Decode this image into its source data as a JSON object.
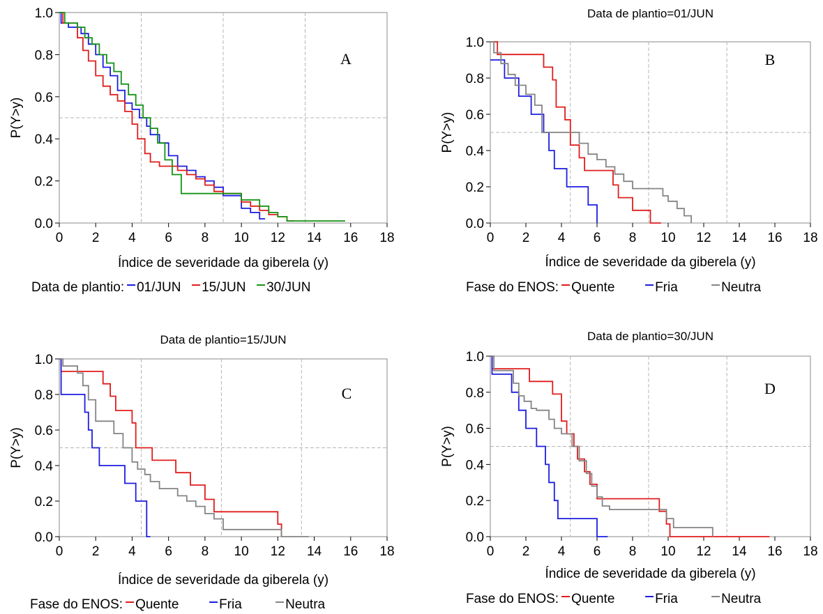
{
  "colors": {
    "blue": "#1c1ce0",
    "red": "#e01c1c",
    "green": "#139313",
    "gray": "#848484",
    "reference": "#b5b5b5"
  },
  "chart_data": [
    {
      "type": "line",
      "step": true,
      "panel_label": "A",
      "title": "",
      "xlabel": "Índice de severidade da giberela (y)",
      "ylabel": "P(Y>y)",
      "xlim": [
        0,
        18
      ],
      "ylim": [
        0,
        1
      ],
      "xticks": [
        0,
        2,
        4,
        6,
        8,
        10,
        12,
        14,
        16,
        18
      ],
      "yticks": [
        0.0,
        0.2,
        0.4,
        0.6,
        0.8,
        1.0
      ],
      "tick_labels_x": [
        "0",
        "2",
        "4",
        "6",
        "8",
        "10",
        "12",
        "14",
        "16",
        "18"
      ],
      "tick_labels_y": [
        "0.0",
        "0.2",
        "0.4",
        "0.6",
        "0.8",
        "1.0"
      ],
      "reference_lines": {
        "x": [
          4.5,
          9.0,
          13.5
        ],
        "y": [
          0.5
        ]
      },
      "legend": {
        "title": "Data de plantio:",
        "position": "bottom"
      },
      "series": [
        {
          "name": "01/JUN",
          "color": "blue",
          "x": [
            0,
            0.1,
            0.5,
            1.2,
            1.6,
            2.0,
            2.4,
            2.8,
            3.2,
            3.6,
            4.0,
            4.4,
            4.8,
            5.0,
            5.5,
            6.0,
            6.5,
            7.0,
            7.5,
            8.0,
            8.5,
            9.0,
            10.0,
            10.5,
            11.0,
            11.3
          ],
          "y": [
            1.0,
            0.95,
            0.93,
            0.9,
            0.85,
            0.8,
            0.74,
            0.7,
            0.63,
            0.57,
            0.54,
            0.5,
            0.46,
            0.42,
            0.38,
            0.32,
            0.27,
            0.25,
            0.22,
            0.2,
            0.17,
            0.13,
            0.07,
            0.05,
            0.02,
            0.02
          ]
        },
        {
          "name": "15/JUN",
          "color": "red",
          "x": [
            0,
            0.2,
            1.0,
            1.3,
            1.6,
            2.0,
            2.4,
            2.8,
            3.2,
            3.6,
            4.0,
            4.3,
            4.7,
            5.0,
            5.5,
            6.0,
            6.5,
            7.0,
            7.5,
            8.0,
            8.5,
            9.0,
            10.0,
            10.5,
            11.0,
            11.5,
            12.0,
            12.5,
            12.9
          ],
          "y": [
            1.0,
            0.95,
            0.88,
            0.82,
            0.77,
            0.7,
            0.65,
            0.61,
            0.58,
            0.53,
            0.47,
            0.4,
            0.33,
            0.29,
            0.27,
            0.27,
            0.25,
            0.23,
            0.21,
            0.18,
            0.15,
            0.14,
            0.1,
            0.08,
            0.06,
            0.04,
            0.03,
            0.01,
            0.01
          ]
        },
        {
          "name": "30/JUN",
          "color": "green",
          "x": [
            0,
            0.3,
            1.0,
            1.4,
            1.8,
            2.2,
            2.6,
            3.0,
            3.4,
            3.8,
            4.2,
            4.6,
            5.0,
            5.4,
            5.8,
            6.2,
            6.7,
            7.2,
            8.0,
            9.0,
            10.0,
            11.0,
            11.5,
            12.0,
            12.5,
            15.7
          ],
          "y": [
            1.0,
            0.95,
            0.93,
            0.88,
            0.85,
            0.8,
            0.76,
            0.72,
            0.66,
            0.61,
            0.56,
            0.5,
            0.45,
            0.38,
            0.3,
            0.23,
            0.14,
            0.14,
            0.14,
            0.14,
            0.11,
            0.08,
            0.05,
            0.03,
            0.01,
            0.01
          ]
        }
      ]
    },
    {
      "type": "line",
      "step": true,
      "panel_label": "B",
      "title": "Data de plantio=01/JUN",
      "xlabel": "Índice de severidade da giberela (y)",
      "ylabel": "P(Y>y)",
      "xlim": [
        0,
        18
      ],
      "ylim": [
        0,
        1
      ],
      "xticks": [
        0,
        2,
        4,
        6,
        8,
        10,
        12,
        14,
        16,
        18
      ],
      "yticks": [
        0.0,
        0.2,
        0.4,
        0.6,
        0.8,
        1.0
      ],
      "tick_labels_x": [
        "0",
        "2",
        "4",
        "6",
        "8",
        "10",
        "12",
        "14",
        "16",
        "18"
      ],
      "tick_labels_y": [
        "0.0",
        "0.2",
        "0.4",
        "0.6",
        "0.8",
        "1.0"
      ],
      "reference_lines": {
        "x": [
          4.5,
          8.9,
          13.3
        ],
        "y": [
          0.5
        ]
      },
      "legend": {
        "title": "Fase do ENOS:",
        "position": "bottom"
      },
      "series": [
        {
          "name": "Quente",
          "color": "red",
          "x": [
            0,
            0.4,
            2.2,
            3.0,
            3.5,
            3.7,
            4.2,
            4.5,
            5.0,
            5.3,
            6.5,
            6.9,
            7.2,
            8.0,
            9.0,
            9.6
          ],
          "y": [
            1.0,
            0.93,
            0.93,
            0.86,
            0.79,
            0.64,
            0.57,
            0.43,
            0.36,
            0.29,
            0.29,
            0.21,
            0.14,
            0.07,
            0.0,
            0.0
          ]
        },
        {
          "name": "Fria",
          "color": "blue",
          "x": [
            0,
            0.1,
            0.8,
            1.6,
            2.3,
            3.0,
            3.3,
            3.6,
            4.3,
            5.5,
            6.0
          ],
          "y": [
            0.9,
            0.9,
            0.8,
            0.7,
            0.6,
            0.5,
            0.4,
            0.3,
            0.2,
            0.1,
            0.0
          ]
        },
        {
          "name": "Neutra",
          "color": "gray",
          "x": [
            0,
            0.2,
            0.6,
            1.0,
            1.4,
            2.0,
            2.5,
            2.9,
            4.6,
            5.0,
            5.5,
            6.0,
            6.5,
            7.0,
            7.5,
            8.0,
            9.5,
            9.7,
            10.0,
            10.5,
            10.9,
            11.3
          ],
          "y": [
            1.0,
            0.94,
            0.88,
            0.82,
            0.76,
            0.71,
            0.65,
            0.5,
            0.5,
            0.44,
            0.38,
            0.35,
            0.31,
            0.27,
            0.23,
            0.19,
            0.19,
            0.15,
            0.12,
            0.08,
            0.04,
            0.0
          ]
        }
      ]
    },
    {
      "type": "line",
      "step": true,
      "panel_label": "C",
      "title": "Data de plantio=15/JUN",
      "xlabel": "Índice de severidade da giberela (y)",
      "ylabel": "P(Y>y)",
      "xlim": [
        0,
        18
      ],
      "ylim": [
        0,
        1
      ],
      "xticks": [
        0,
        2,
        4,
        6,
        8,
        10,
        12,
        14,
        16,
        18
      ],
      "yticks": [
        0.0,
        0.2,
        0.4,
        0.6,
        0.8,
        1.0
      ],
      "tick_labels_x": [
        "0",
        "2",
        "4",
        "6",
        "8",
        "10",
        "12",
        "14",
        "16",
        "18"
      ],
      "tick_labels_y": [
        "0.0",
        "0.2",
        "0.4",
        "0.6",
        "0.8",
        "1.0"
      ],
      "reference_lines": {
        "x": [
          4.5,
          8.9,
          13.3
        ],
        "y": [
          0.5
        ]
      },
      "legend": {
        "title": "Fase do ENOS:",
        "position": "bottom"
      },
      "series": [
        {
          "name": "Quente",
          "color": "red",
          "x": [
            0,
            0.1,
            2.4,
            2.8,
            3.1,
            4.0,
            4.2,
            5.1,
            6.4,
            7.2,
            8.0,
            8.5,
            12.0,
            12.2
          ],
          "y": [
            1.0,
            0.93,
            0.86,
            0.79,
            0.71,
            0.64,
            0.5,
            0.43,
            0.36,
            0.29,
            0.21,
            0.14,
            0.07,
            0.0
          ]
        },
        {
          "name": "Fria",
          "color": "blue",
          "x": [
            0,
            0.1,
            1.4,
            1.6,
            1.8,
            2.2,
            3.6,
            4.2,
            4.8,
            5.0
          ],
          "y": [
            1.0,
            0.8,
            0.7,
            0.6,
            0.5,
            0.4,
            0.3,
            0.2,
            0.0,
            0.0
          ]
        },
        {
          "name": "Neutra",
          "color": "gray",
          "x": [
            0,
            0.2,
            1.0,
            1.3,
            1.6,
            2.0,
            3.0,
            3.5,
            4.0,
            4.3,
            4.7,
            5.0,
            5.5,
            6.5,
            7.0,
            7.5,
            8.0,
            8.5,
            9.0,
            10.0,
            11.5,
            12.2,
            13.7
          ],
          "y": [
            1.0,
            0.96,
            0.92,
            0.85,
            0.77,
            0.65,
            0.58,
            0.5,
            0.42,
            0.38,
            0.35,
            0.31,
            0.27,
            0.23,
            0.2,
            0.17,
            0.13,
            0.1,
            0.04,
            0.04,
            0.04,
            0.0,
            0.0
          ]
        }
      ]
    },
    {
      "type": "line",
      "step": true,
      "panel_label": "D",
      "title": "Data de plantio=30/JUN",
      "xlabel": "Índice de severidade da giberela (y)",
      "ylabel": "P(Y>y)",
      "xlim": [
        0,
        18
      ],
      "ylim": [
        0,
        1
      ],
      "xticks": [
        0,
        2,
        4,
        6,
        8,
        10,
        12,
        14,
        16,
        18
      ],
      "yticks": [
        0.0,
        0.2,
        0.4,
        0.6,
        0.8,
        1.0
      ],
      "tick_labels_x": [
        "0",
        "2",
        "4",
        "6",
        "8",
        "10",
        "12",
        "14",
        "16",
        "18"
      ],
      "tick_labels_y": [
        "0.0",
        "0.2",
        "0.4",
        "0.6",
        "0.8",
        "1.0"
      ],
      "reference_lines": {
        "x": [
          4.5,
          8.9,
          13.3
        ],
        "y": [
          0.5
        ]
      },
      "legend": {
        "title": "Fase do ENOS:",
        "position": "bottom"
      },
      "series": [
        {
          "name": "Quente",
          "color": "red",
          "x": [
            0,
            0.1,
            2.2,
            3.5,
            4.0,
            4.3,
            4.7,
            4.9,
            5.3,
            5.6,
            6.0,
            9.5,
            9.9,
            10.1,
            15.7
          ],
          "y": [
            1.0,
            0.93,
            0.86,
            0.79,
            0.64,
            0.57,
            0.5,
            0.43,
            0.36,
            0.29,
            0.21,
            0.14,
            0.07,
            0.0,
            0.0
          ]
        },
        {
          "name": "Fria",
          "color": "blue",
          "x": [
            0,
            0.1,
            1.2,
            1.6,
            2.0,
            2.6,
            3.1,
            3.3,
            3.6,
            3.8,
            4.0,
            6.0,
            6.6
          ],
          "y": [
            1.0,
            0.9,
            0.8,
            0.7,
            0.6,
            0.5,
            0.4,
            0.3,
            0.2,
            0.1,
            0.1,
            0.0,
            0.0
          ]
        },
        {
          "name": "Neutra",
          "color": "gray",
          "x": [
            0,
            0.2,
            1.3,
            1.6,
            1.9,
            2.3,
            2.6,
            3.3,
            3.6,
            4.0,
            4.6,
            5.0,
            5.4,
            5.7,
            6.0,
            6.3,
            6.7,
            9.5,
            9.9,
            10.3,
            12.5
          ],
          "y": [
            1.0,
            0.92,
            0.85,
            0.78,
            0.75,
            0.71,
            0.7,
            0.65,
            0.6,
            0.57,
            0.5,
            0.42,
            0.35,
            0.28,
            0.22,
            0.17,
            0.15,
            0.15,
            0.1,
            0.05,
            0.0
          ]
        }
      ]
    }
  ]
}
